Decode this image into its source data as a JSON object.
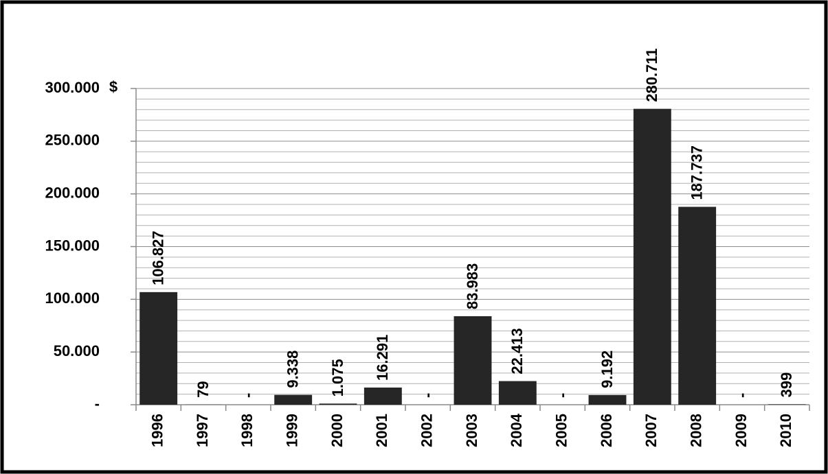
{
  "chart_data": {
    "type": "bar",
    "y_axis_label": "$",
    "categories": [
      "1996",
      "1997",
      "1998",
      "1999",
      "2000",
      "2001",
      "2002",
      "2003",
      "2004",
      "2005",
      "2006",
      "2007",
      "2008",
      "2009",
      "2010"
    ],
    "values": [
      106827,
      79,
      0,
      9338,
      1075,
      16291,
      0,
      83983,
      22413,
      0,
      9192,
      280711,
      187737,
      0,
      399
    ],
    "value_labels": [
      "106.827",
      "79",
      "-",
      "9.338",
      "1.075",
      "16.291",
      "-",
      "83.983",
      "22.413",
      "-",
      "9.192",
      "280.711",
      "187.737",
      "-",
      "399"
    ],
    "color": "#262626",
    "ylim": [
      0,
      300000
    ],
    "yticks": [
      {
        "value": 0,
        "label": "-"
      },
      {
        "value": 50000,
        "label": "50.000"
      },
      {
        "value": 100000,
        "label": "100.000"
      },
      {
        "value": 150000,
        "label": "150.000"
      },
      {
        "value": 200000,
        "label": "200.000"
      },
      {
        "value": 250000,
        "label": "250.000"
      },
      {
        "value": 300000,
        "label": "300.000"
      }
    ],
    "minor_yticks": [
      10000,
      20000,
      30000,
      40000,
      60000,
      70000,
      80000,
      90000,
      110000,
      120000,
      130000,
      140000,
      160000,
      170000,
      180000,
      190000,
      210000,
      220000,
      230000,
      240000,
      260000,
      270000,
      280000,
      290000
    ],
    "grid": true
  }
}
